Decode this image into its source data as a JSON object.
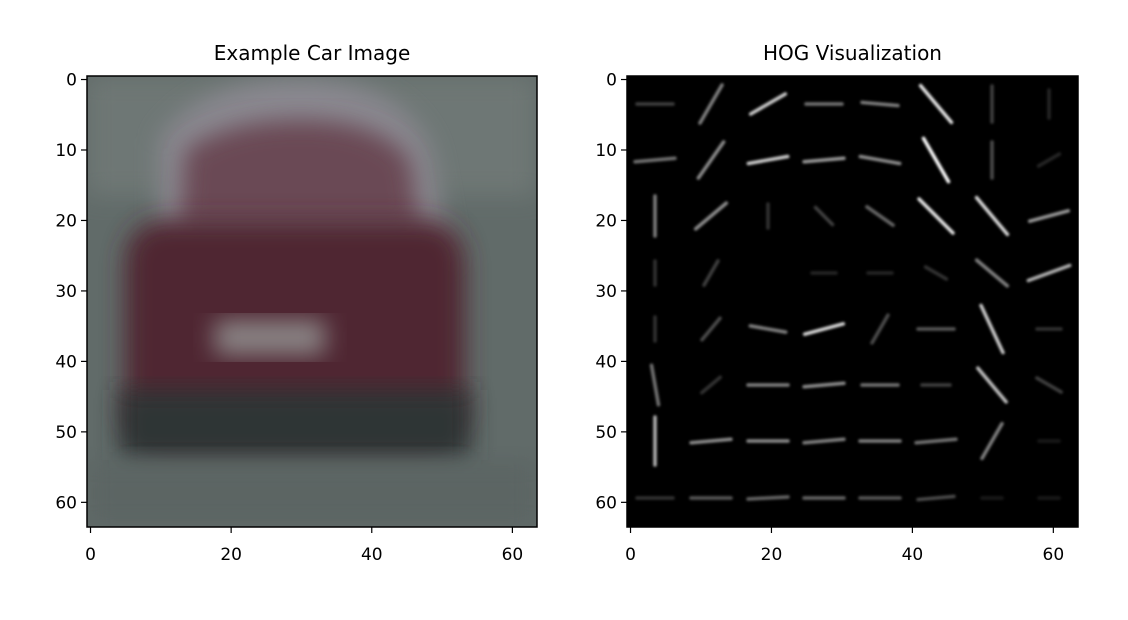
{
  "chart_data": [
    {
      "type": "image",
      "title": "Example Car Image",
      "xlim": [
        -0.5,
        63.5
      ],
      "ylim": [
        63.5,
        -0.5
      ],
      "xticks": [
        0,
        20,
        40,
        60
      ],
      "yticks": [
        0,
        10,
        20,
        30,
        40,
        50,
        60
      ]
    },
    {
      "type": "image",
      "title": "HOG Visualization",
      "xlim": [
        -0.5,
        63.5
      ],
      "ylim": [
        63.5,
        -0.5
      ],
      "xticks": [
        0,
        20,
        40,
        60
      ],
      "yticks": [
        0,
        10,
        20,
        30,
        40,
        50,
        60
      ]
    }
  ]
}
